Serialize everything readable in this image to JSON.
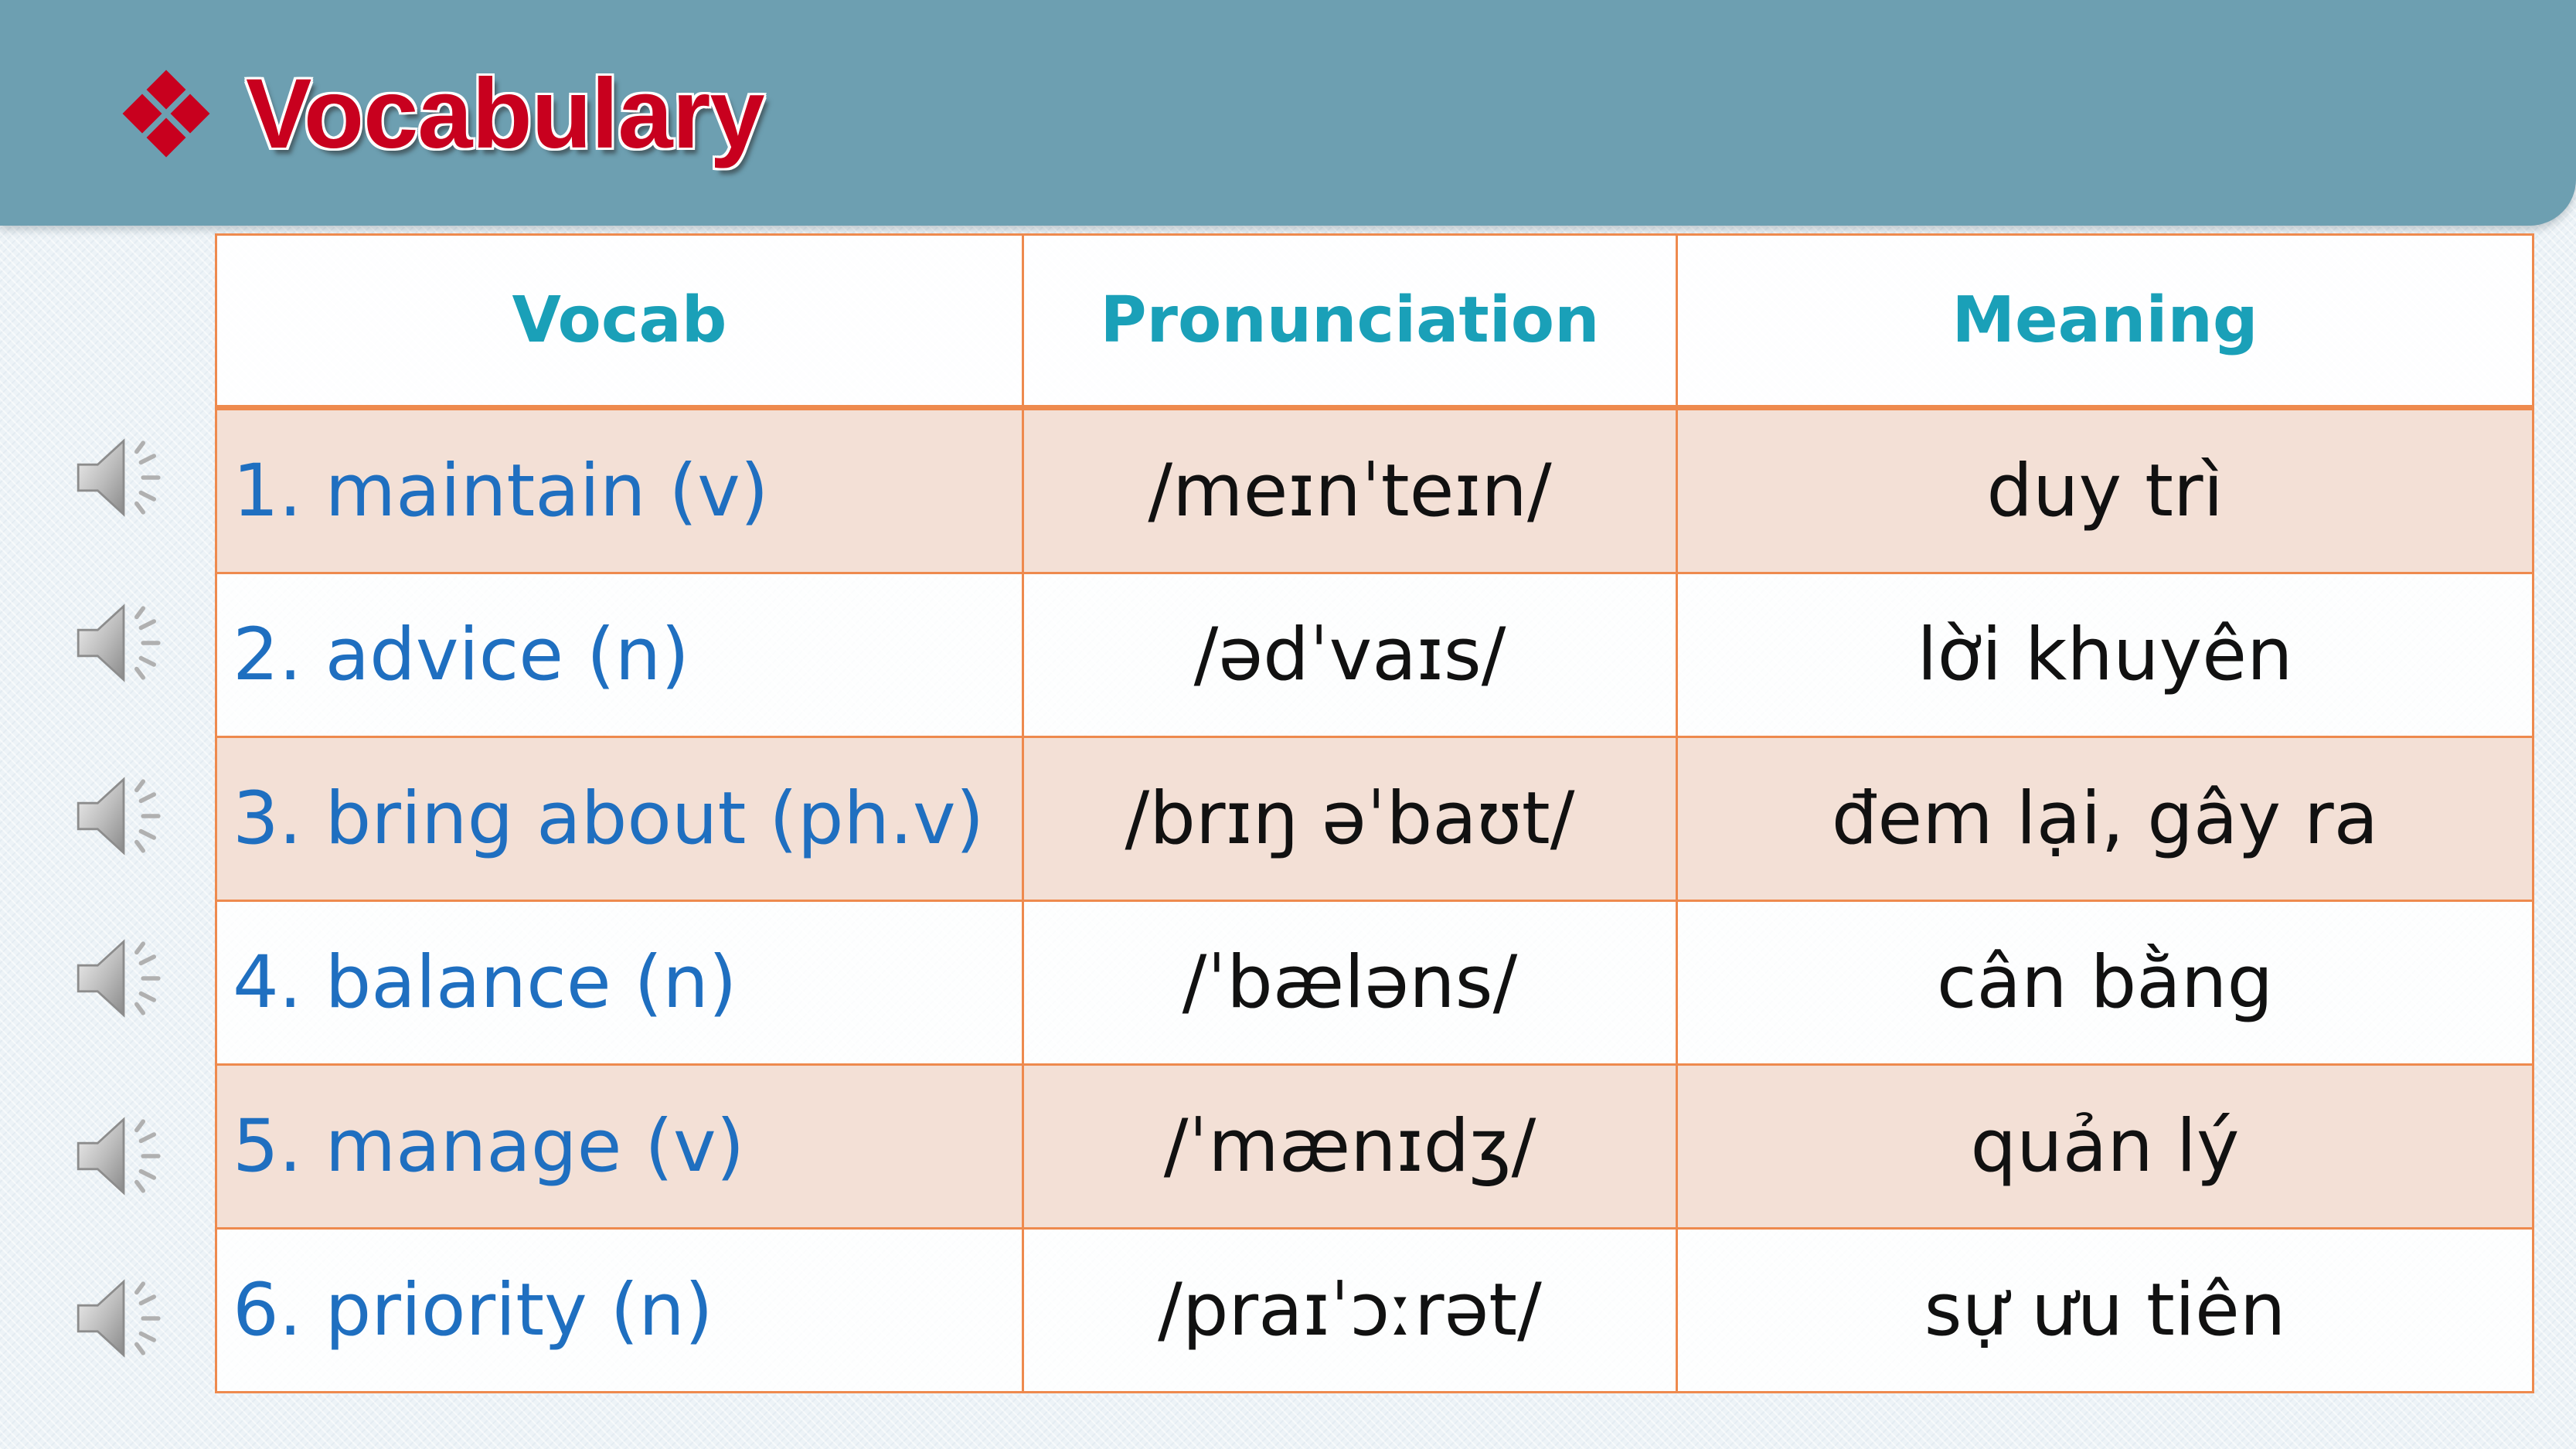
{
  "header": {
    "title": "Vocabulary"
  },
  "table": {
    "headers": [
      "Vocab",
      "Pronunciation",
      "Meaning"
    ],
    "rows": [
      {
        "word": "1. maintain (v)",
        "ipa": "/meɪnˈteɪn/",
        "meaning": "duy trì"
      },
      {
        "word": "2. advice (n)",
        "ipa": "/ədˈvaɪs/",
        "meaning": "lời khuyên"
      },
      {
        "word": "3. bring about (ph.v)",
        "ipa": "/brɪŋ əˈbaʊt/",
        "meaning": "đem lại, gây ra"
      },
      {
        "word": "4. balance (n)",
        "ipa": "/ˈbæləns/",
        "meaning": "cân bằng"
      },
      {
        "word": "5. manage (v)",
        "ipa": "/ˈmænɪdʒ/",
        "meaning": "quản lý"
      },
      {
        "word": "6. priority  (n)",
        "ipa": "/praɪˈɔːrət/",
        "meaning": "sự ưu tiên"
      }
    ]
  },
  "icons": {
    "bullet": "four-diamond-bullet-icon",
    "audio": "speaker-icon"
  },
  "colors": {
    "header_band": "#6d9fb1",
    "title": "#c8001e",
    "table_border": "#ee8a4e",
    "header_text": "#1aa0b8",
    "vocab_text": "#1f6fc0",
    "row_shaded": "#f3e0d6"
  }
}
